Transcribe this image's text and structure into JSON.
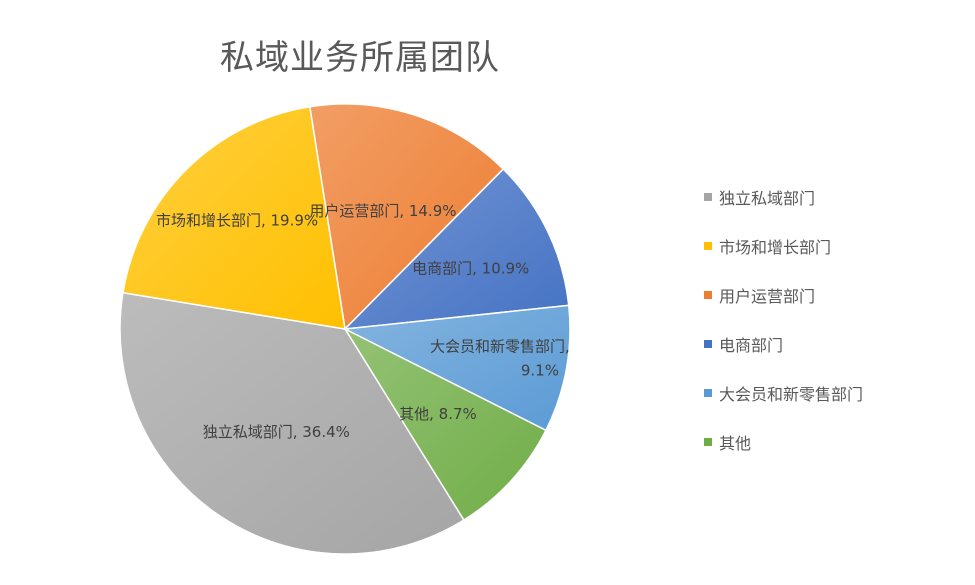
{
  "chart_data": {
    "type": "pie",
    "title": "私域业务所属团队",
    "categories": [
      "独立私域部门",
      "市场和增长部门",
      "用户运营部门",
      "电商部门",
      "大会员和新零售部门",
      "其他"
    ],
    "values": [
      36.4,
      19.9,
      14.9,
      10.9,
      9.1,
      8.7
    ],
    "data_labels": [
      "独立私域部门, 36.4%",
      "市场和增长部门, 19.9%",
      "用户运营部门, 14.9%",
      "电商部门, 10.9%",
      "大会员和新零售部门, 9.1%",
      "其他, 8.7%"
    ],
    "colors": [
      "#a5a5a5",
      "#ffc000",
      "#ed7d31",
      "#4472c4",
      "#5b9bd5",
      "#70ad47"
    ],
    "legend_position": "right",
    "grid": false
  }
}
